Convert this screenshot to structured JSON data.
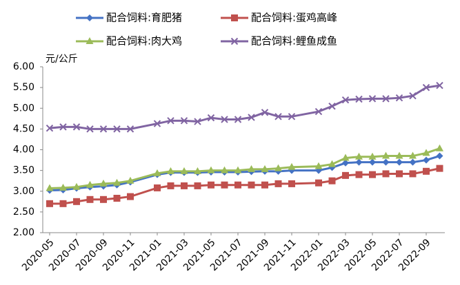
{
  "chart_data": {
    "type": "line",
    "y_label": "元/公斤",
    "x": [
      "2020-05",
      "2020-06",
      "2020-07",
      "2020-08",
      "2020-09",
      "2020-10",
      "2020-11",
      "2021-01",
      "2021-02",
      "2021-03",
      "2021-04",
      "2021-05",
      "2021-06",
      "2021-07",
      "2021-08",
      "2021-09",
      "2021-10",
      "2021-11",
      "2022-01",
      "2022-02",
      "2022-03",
      "2022-04",
      "2022-05",
      "2022-06",
      "2022-07",
      "2022-08",
      "2022-09",
      "2022-10"
    ],
    "xticks": [
      "2020-05",
      "2020-07",
      "2020-09",
      "2020-11",
      "2021-01",
      "2021-03",
      "2021-05",
      "2021-07",
      "2021-09",
      "2021-11",
      "2022-01",
      "2022-03",
      "2022-05",
      "2022-07",
      "2022-09"
    ],
    "ylim": [
      2,
      6
    ],
    "yticks": [
      {
        "value": 2,
        "label": "2.00"
      },
      {
        "value": 2.5,
        "label": "2.50"
      },
      {
        "value": 3,
        "label": "3.00"
      },
      {
        "value": 3.5,
        "label": "3.50"
      },
      {
        "value": 4,
        "label": "4.00"
      },
      {
        "value": 4.5,
        "label": "4.50"
      },
      {
        "value": 5,
        "label": "5.00"
      },
      {
        "value": 5.5,
        "label": "5.50"
      },
      {
        "value": 6,
        "label": "6.00"
      }
    ],
    "grid": false,
    "series": [
      {
        "name": "配合饲料:育肥猪",
        "color": "#4472c4",
        "marker": "diamond",
        "values": [
          3.02,
          3.03,
          3.07,
          3.1,
          3.12,
          3.15,
          3.22,
          3.4,
          3.45,
          3.45,
          3.45,
          3.46,
          3.46,
          3.46,
          3.47,
          3.48,
          3.48,
          3.5,
          3.5,
          3.57,
          3.68,
          3.7,
          3.7,
          3.7,
          3.7,
          3.7,
          3.75,
          3.85
        ]
      },
      {
        "name": "配合饲料:蛋鸡高峰",
        "color": "#c0504d",
        "marker": "square",
        "values": [
          2.7,
          2.7,
          2.75,
          2.8,
          2.8,
          2.83,
          2.87,
          3.08,
          3.13,
          3.13,
          3.13,
          3.15,
          3.15,
          3.15,
          3.15,
          3.15,
          3.18,
          3.18,
          3.2,
          3.25,
          3.38,
          3.4,
          3.4,
          3.42,
          3.42,
          3.42,
          3.48,
          3.55
        ]
      },
      {
        "name": "配合饲料:肉大鸡",
        "color": "#9bbb59",
        "marker": "triangle",
        "values": [
          3.07,
          3.08,
          3.1,
          3.15,
          3.18,
          3.2,
          3.25,
          3.43,
          3.48,
          3.48,
          3.48,
          3.5,
          3.5,
          3.5,
          3.53,
          3.53,
          3.55,
          3.58,
          3.6,
          3.65,
          3.8,
          3.83,
          3.83,
          3.85,
          3.85,
          3.85,
          3.92,
          4.03
        ]
      },
      {
        "name": "配合饲料:鲤鱼成鱼",
        "color": "#8064a2",
        "marker": "x",
        "values": [
          4.52,
          4.55,
          4.55,
          4.5,
          4.5,
          4.5,
          4.5,
          4.63,
          4.7,
          4.7,
          4.68,
          4.77,
          4.73,
          4.73,
          4.78,
          4.9,
          4.8,
          4.8,
          4.92,
          5.05,
          5.2,
          5.22,
          5.23,
          5.23,
          5.25,
          5.3,
          5.5,
          5.55
        ]
      }
    ]
  }
}
